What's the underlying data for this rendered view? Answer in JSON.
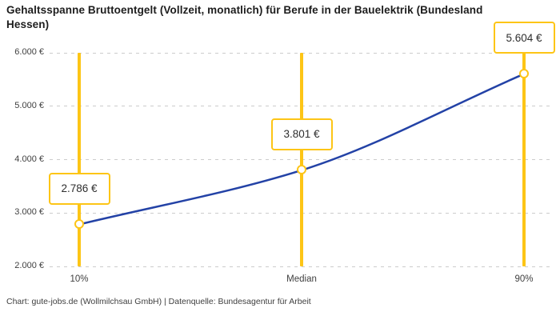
{
  "title": "Gehaltsspanne Bruttoentgelt (Vollzeit, monatlich) für Berufe in der Bauelektrik (Bundesland Hessen)",
  "footer": "Chart: gute-jobs.de (Wollmilchsau GmbH) | Datenquelle: Bundesagentur für Arbeit",
  "colors": {
    "accent_yellow": "#FDC516",
    "line_blue": "#2342A6",
    "grid_gray": "#CCCCCC",
    "title_text": "#1D1D1D",
    "axis_text": "#3F3F3F",
    "label_text": "#2E2E2E",
    "background": "#FFFFFF"
  },
  "chart_data": {
    "type": "line",
    "title": "Gehaltsspanne Bruttoentgelt (Vollzeit, monatlich) für Berufe in der Bauelektrik (Bundesland Hessen)",
    "categories": [
      "10%",
      "Median",
      "90%"
    ],
    "values": [
      2786,
      3801,
      5604
    ],
    "value_labels": [
      "2.786 €",
      "3.801 €",
      "5.604 €"
    ],
    "series": [
      {
        "name": "Bruttoentgelt",
        "values": [
          2786,
          3801,
          5604
        ]
      }
    ],
    "xlabel": "",
    "ylabel": "",
    "ylim": [
      2000,
      6000
    ],
    "y_tick_values": [
      2000,
      3000,
      4000,
      5000,
      6000
    ],
    "y_tick_labels": [
      "2.000 €",
      "3.000 €",
      "4.000 €",
      "5.000 €",
      "6.000 €"
    ],
    "grid": "horizontal-dashed",
    "legend": "none",
    "marker_style": "open-circle",
    "percentile_guides": "vertical-yellow-lines",
    "footer": "Chart: gute-jobs.de (Wollmilchsau GmbH) | Datenquelle: Bundesagentur für Arbeit"
  }
}
